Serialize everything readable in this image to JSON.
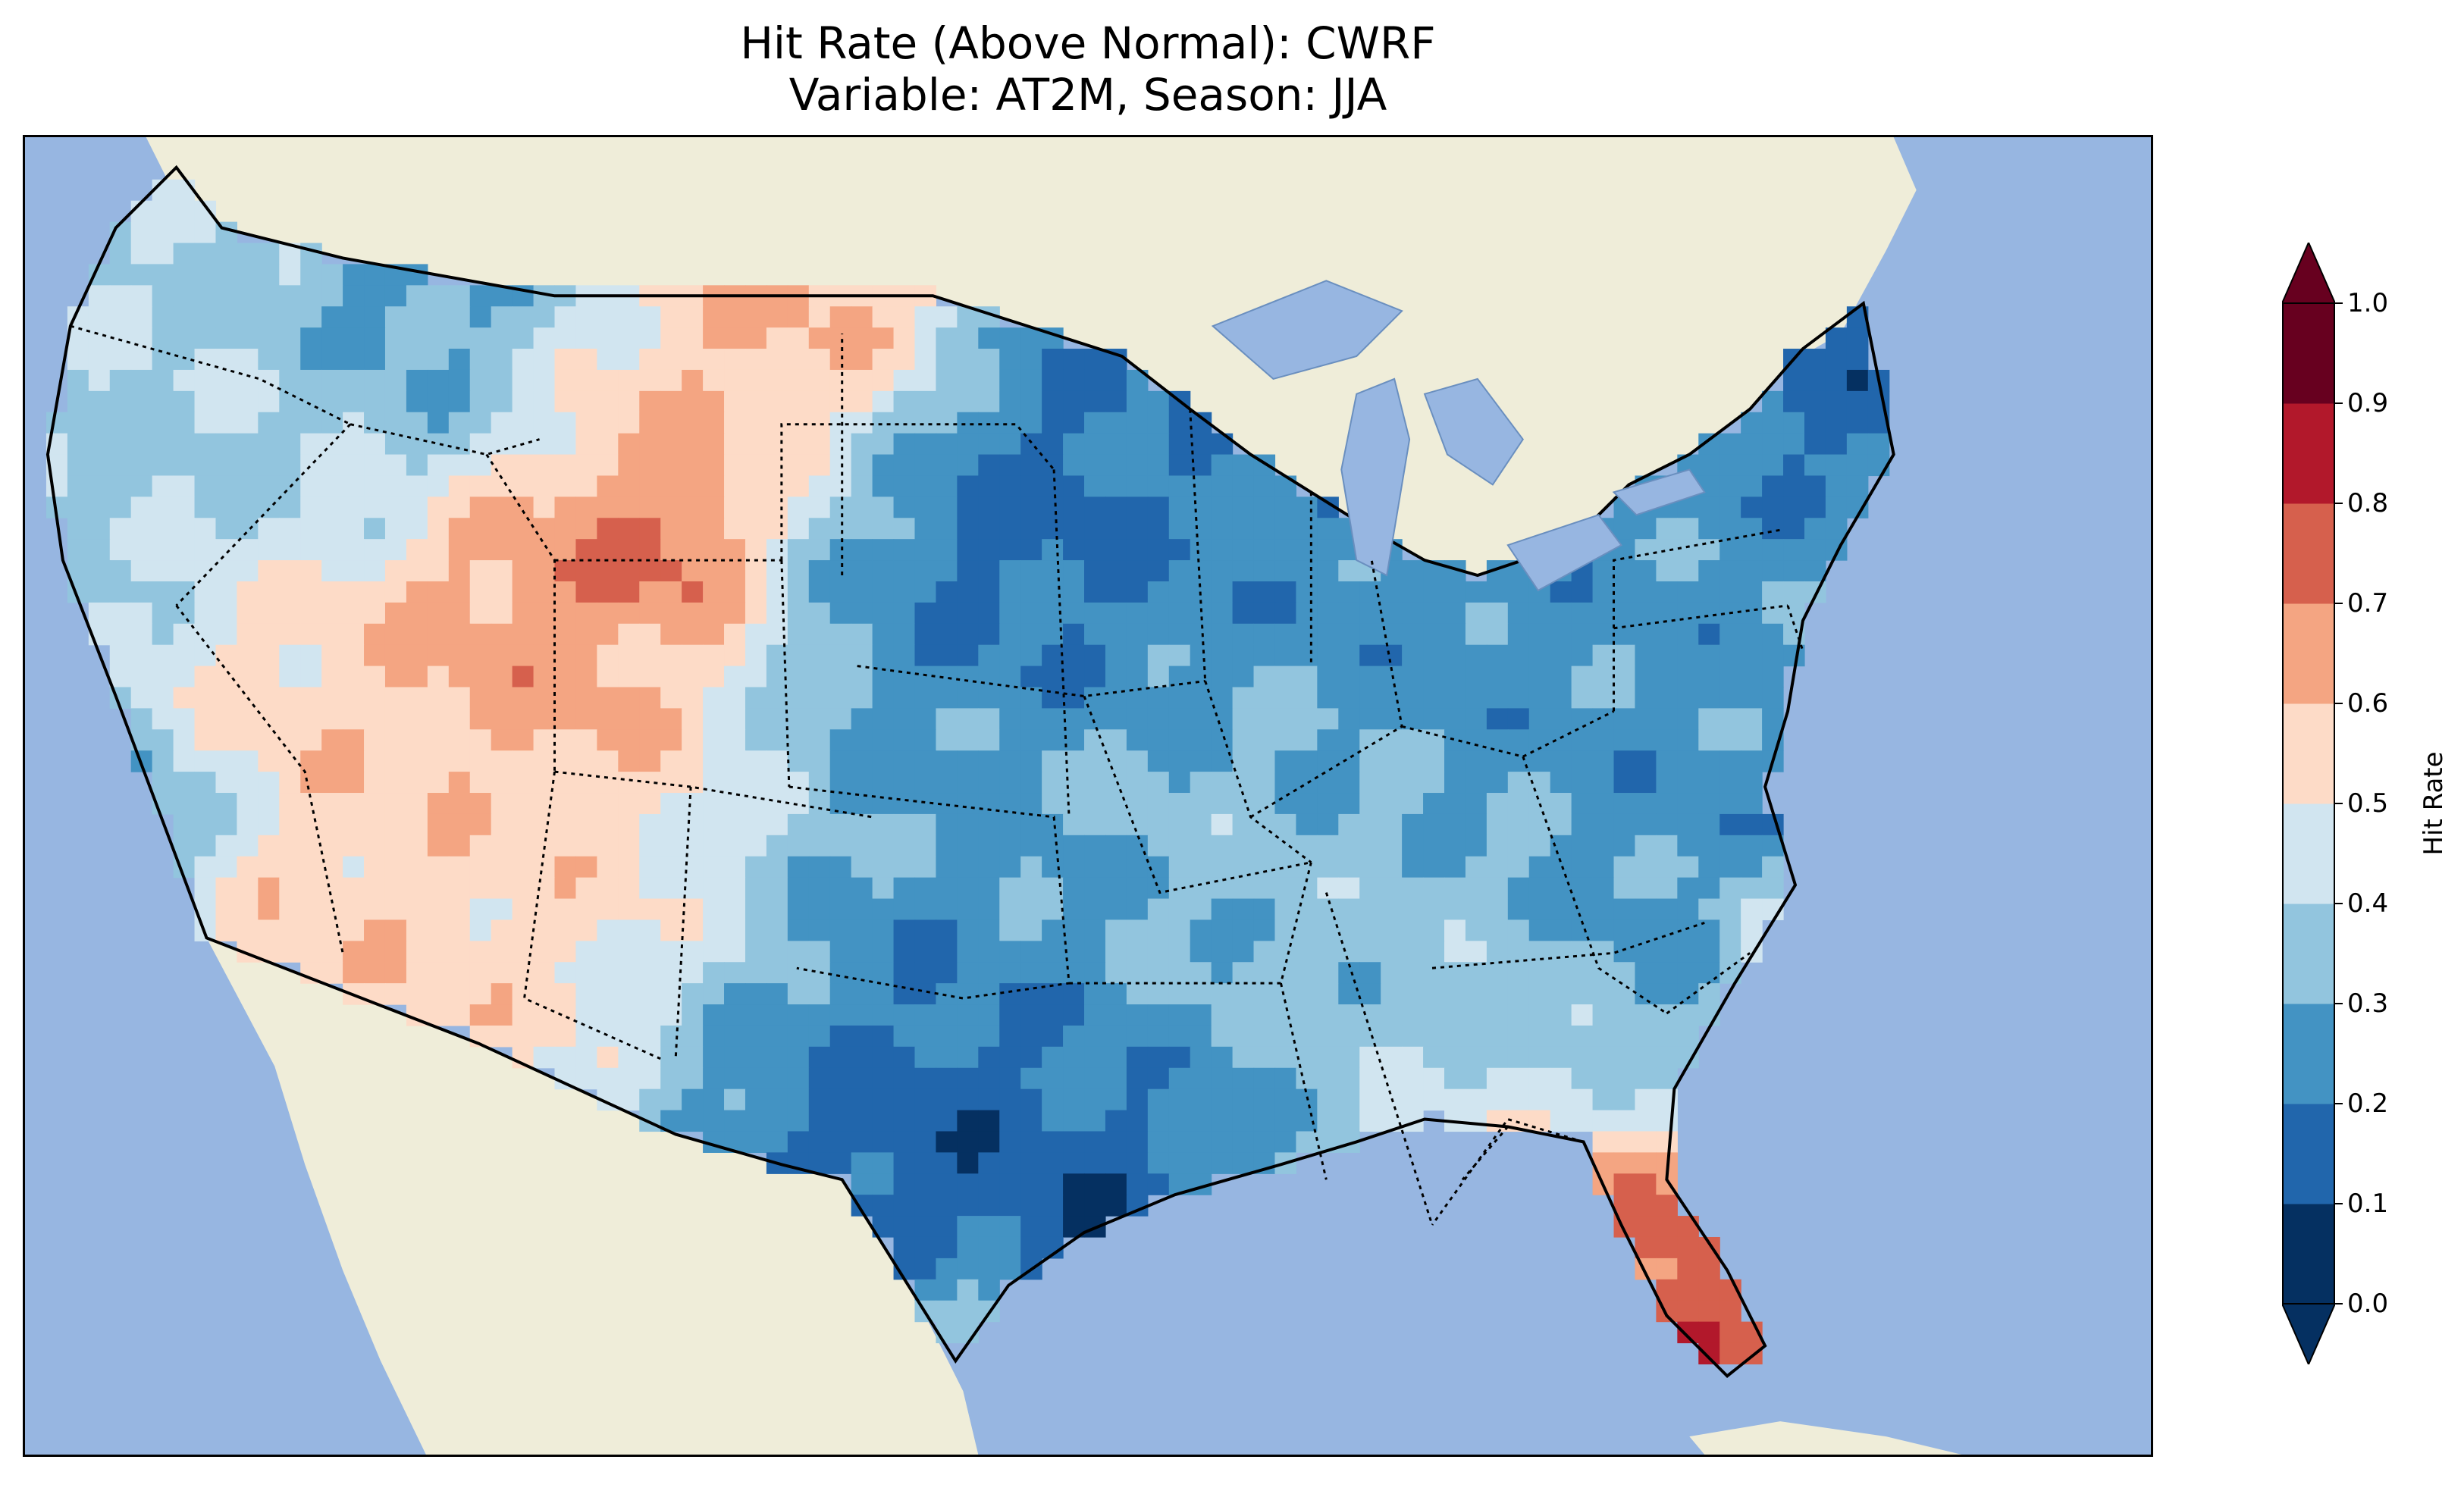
{
  "figure": {
    "title_line1": "Hit Rate (Above Normal): CWRF",
    "title_line2": "Variable: AT2M, Season: JJA"
  },
  "map": {
    "colors": {
      "ocean": "#97b6e1",
      "land": "#efedd9",
      "lakes": "#97b6e1"
    }
  },
  "colorbar": {
    "label": "Hit Rate",
    "ticks": [
      "0.0",
      "0.1",
      "0.2",
      "0.3",
      "0.4",
      "0.5",
      "0.6",
      "0.7",
      "0.8",
      "0.9",
      "1.0"
    ],
    "colors": [
      "#053061",
      "#2166ac",
      "#4393c3",
      "#92c5de",
      "#d1e5f0",
      "#fddbc7",
      "#f4a582",
      "#d6604d",
      "#b2182b",
      "#67001f"
    ],
    "under_color": "#053061",
    "over_color": "#67001f",
    "range": [
      0.0,
      1.0
    ]
  }
}
